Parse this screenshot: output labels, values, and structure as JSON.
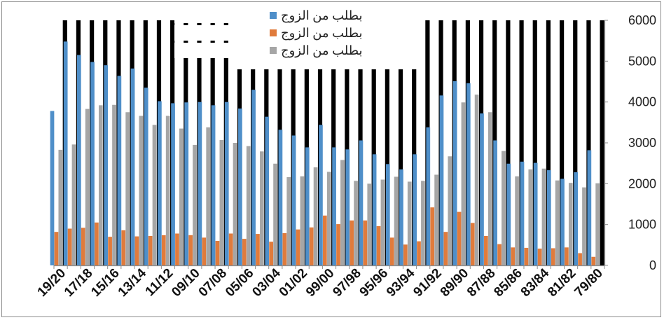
{
  "chart_data": {
    "type": "bar",
    "title": "",
    "xlabel": "",
    "ylabel": "",
    "ylim": [
      0,
      6000
    ],
    "yticks": [
      0,
      1000,
      2000,
      3000,
      4000,
      5000,
      6000
    ],
    "y_axis_side": "right",
    "x_direction": "right-to-left",
    "grid": false,
    "legend": {
      "position": "top-center"
    },
    "categories": [
      "79/80",
      "80/81",
      "81/82",
      "82/83",
      "83/84",
      "84/85",
      "85/86",
      "86/87",
      "87/88",
      "88/89",
      "89/90",
      "90/91",
      "91/92",
      "92/93",
      "93/94",
      "94/95",
      "95/96",
      "96/97",
      "97/98",
      "98/99",
      "99/00",
      "00/01",
      "01/02",
      "02/03",
      "03/04",
      "04/05",
      "05/06",
      "06/07",
      "07/08",
      "08/09",
      "09/10",
      "10/11",
      "11/12",
      "12/13",
      "13/14",
      "14/15",
      "15/16",
      "16/17",
      "17/18",
      "18/19",
      "19/20"
    ],
    "tick_labels": [
      "79/80",
      "81/82",
      "83/84",
      "85/86",
      "87/88",
      "89/90",
      "91/92",
      "93/94",
      "95/96",
      "97/98",
      "99/00",
      "01/02",
      "03/04",
      "05/06",
      "07/08",
      "09/10",
      "11/12",
      "13/14",
      "15/16",
      "17/18",
      "19/20"
    ],
    "background_bar_values": [
      6000,
      6000,
      6000,
      6000,
      6000,
      6000,
      6000,
      6000,
      6000,
      6000,
      6000,
      6000,
      6000,
      6000,
      4800,
      4800,
      4800,
      4800,
      4800,
      4800,
      4800,
      4800,
      4800,
      4800,
      4800,
      4800,
      4800,
      4800,
      6000,
      6000,
      6000,
      6000,
      6000,
      6000,
      6000,
      6000,
      6000,
      6000,
      6000,
      6000,
      6000
    ],
    "background_bar_color": "#000000",
    "series": [
      {
        "name": "بطلب من الزوج",
        "color": "#4f8fc9",
        "values": [
          2820,
          2280,
          2120,
          2330,
          2510,
          2540,
          2490,
          3060,
          3720,
          4460,
          4510,
          4160,
          3380,
          2720,
          2350,
          2480,
          2720,
          3060,
          2840,
          2890,
          3440,
          2890,
          3180,
          3320,
          3640,
          4300,
          3840,
          4000,
          3920,
          4000,
          3990,
          3970,
          4020,
          4350,
          4820,
          4640,
          4900,
          4980,
          5150,
          5480,
          3780
        ]
      },
      {
        "name": "بطلب من الزوج",
        "color": "#e07b3c",
        "values": [
          210,
          300,
          440,
          420,
          410,
          430,
          440,
          520,
          720,
          1040,
          1310,
          820,
          1420,
          590,
          510,
          680,
          960,
          1100,
          1100,
          1010,
          1220,
          930,
          880,
          790,
          580,
          770,
          650,
          780,
          600,
          680,
          740,
          780,
          740,
          720,
          710,
          860,
          700,
          1050,
          920,
          900,
          820
        ]
      },
      {
        "name": "بطلب من الزوج",
        "color": "#a6a6a6",
        "values": [
          2010,
          1910,
          2020,
          2080,
          2370,
          2350,
          2180,
          2800,
          3750,
          4180,
          3990,
          2670,
          2220,
          2070,
          2050,
          2170,
          2100,
          2000,
          2070,
          2580,
          2290,
          2400,
          2180,
          2160,
          2490,
          2790,
          2920,
          3000,
          3070,
          3380,
          2950,
          3350,
          3660,
          3440,
          3660,
          3750,
          3930,
          3920,
          3830,
          2960,
          2830
        ]
      }
    ]
  }
}
